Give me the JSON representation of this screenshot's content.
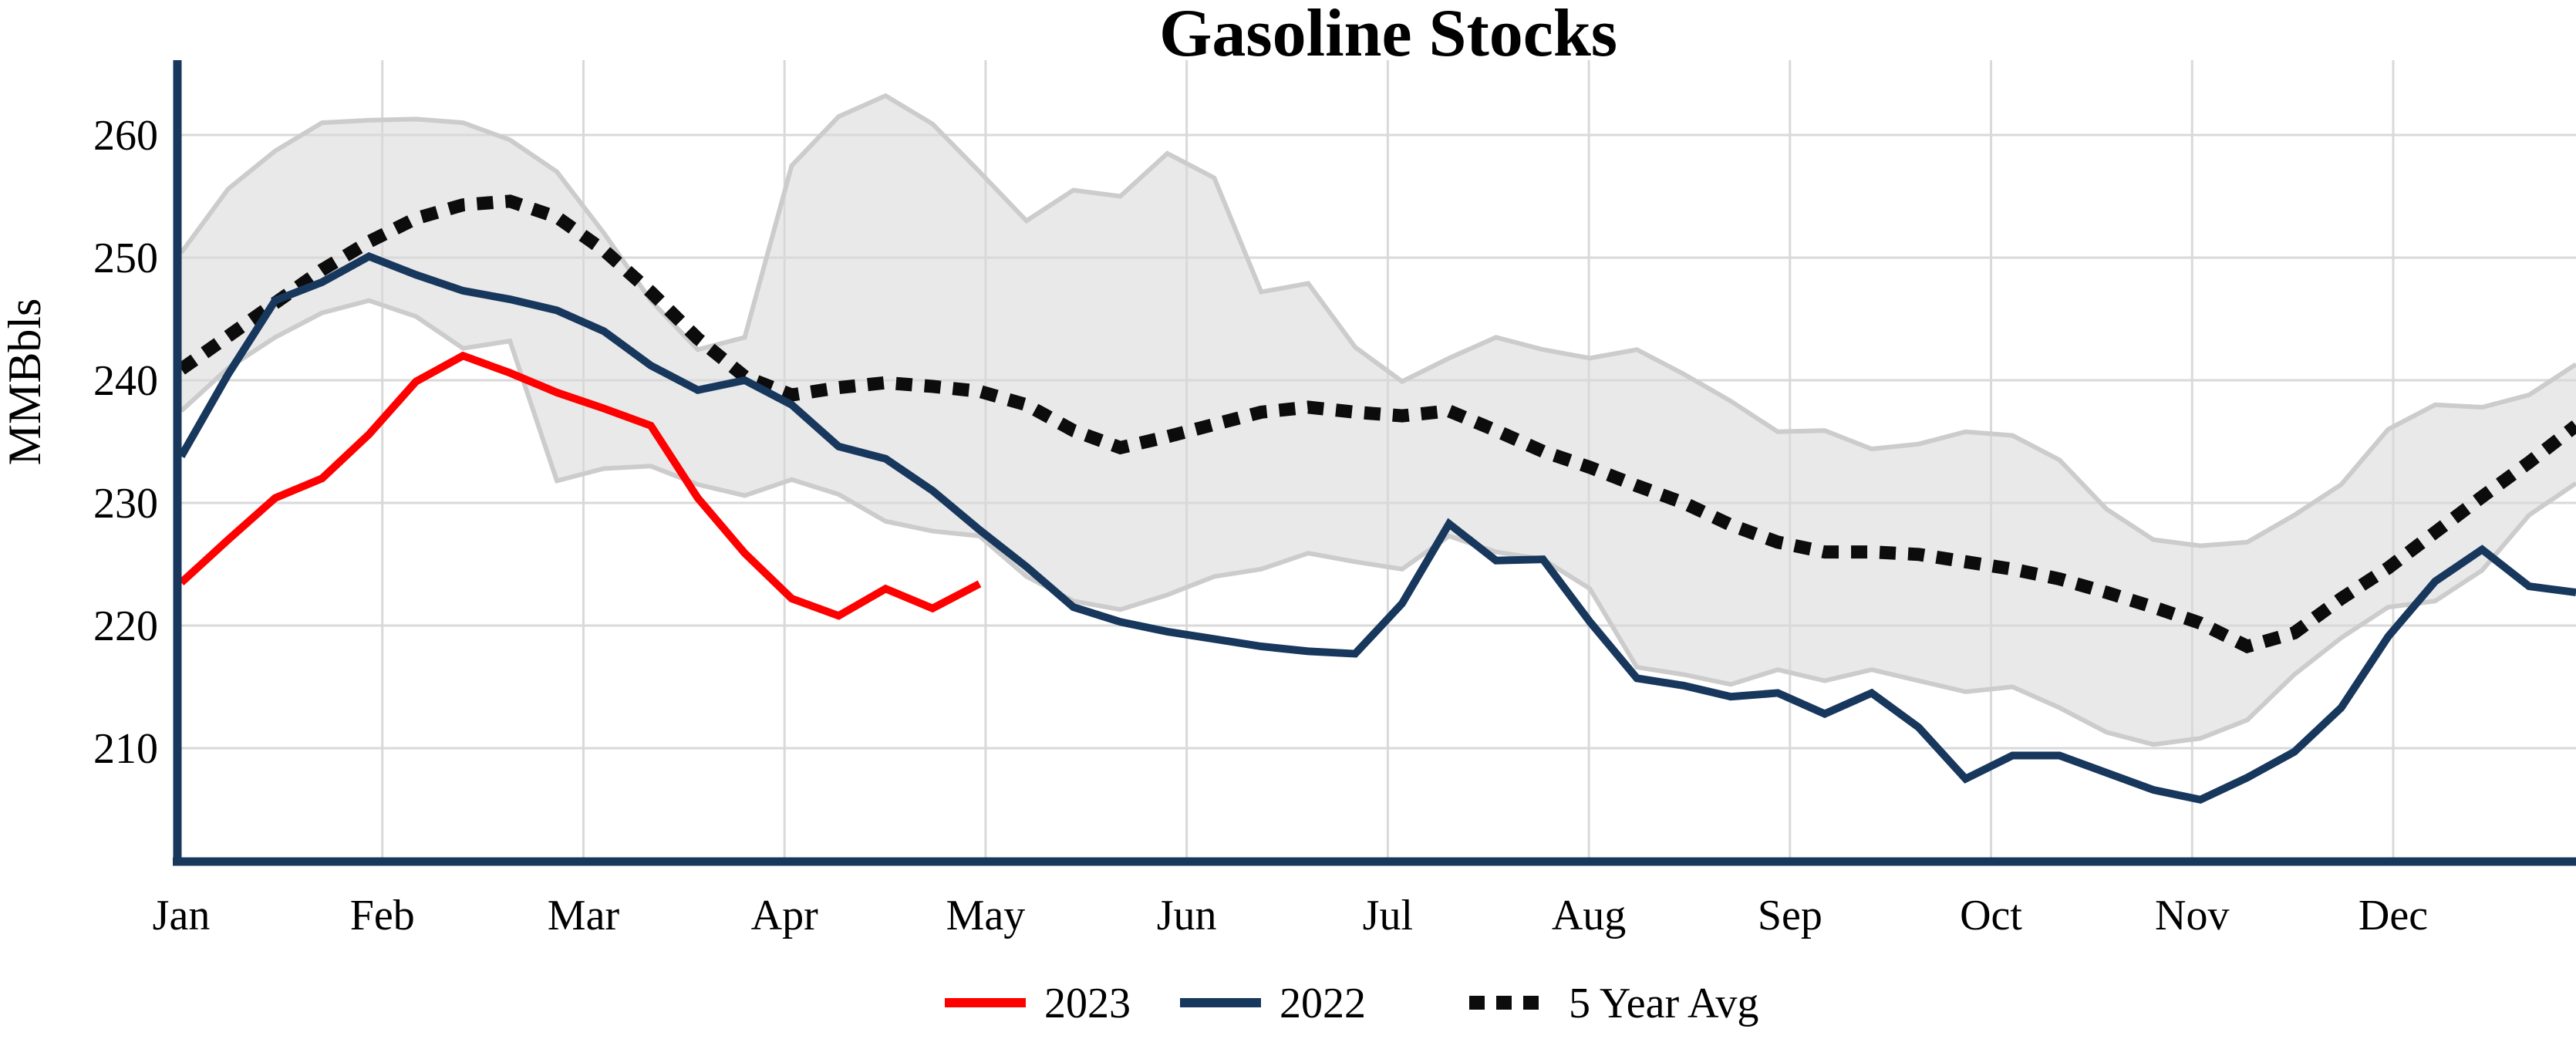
{
  "title": "Gasoline Stocks",
  "y_axis": {
    "label": "MMBbls",
    "ticks": [
      210,
      220,
      230,
      240,
      250,
      260
    ]
  },
  "x_axis": {
    "months": [
      "Jan",
      "Feb",
      "Mar",
      "Apr",
      "May",
      "Jun",
      "Jul",
      "Aug",
      "Sep",
      "Oct",
      "Nov",
      "Dec"
    ]
  },
  "legend": [
    {
      "label": "2023",
      "color": "#fe0000",
      "style": "solid"
    },
    {
      "label": "2022",
      "color": "#17375d",
      "style": "solid"
    },
    {
      "label": "5 Year Avg",
      "color": "#0c0c0c",
      "style": "dotted"
    }
  ],
  "colors": {
    "series_2023": "#fe0000",
    "series_2022": "#17375d",
    "series_5yr_avg": "#0c0c0c",
    "band_fill": "#e9e9e9",
    "band_edge": "#cccccc",
    "gridline": "#d9d9d9",
    "axis": "#17375d",
    "background": "#ffffff"
  },
  "chart_data": {
    "type": "line",
    "title": "Gasoline Stocks",
    "ylabel": "MMBbls",
    "xlabel": "",
    "x_categories": [
      "Jan",
      "Feb",
      "Mar",
      "Apr",
      "May",
      "Jun",
      "Jul",
      "Aug",
      "Sep",
      "Oct",
      "Nov",
      "Dec"
    ],
    "x_unit": "week",
    "ylim": [
      202,
      264.5
    ],
    "yticks": [
      210,
      220,
      230,
      240,
      250,
      260
    ],
    "grid": true,
    "legend_position": "bottom-center",
    "series": [
      {
        "name": "2023",
        "style": "solid",
        "color": "#fe0000",
        "values": [
          223.5,
          227.0,
          230.4,
          232.0,
          235.6,
          239.9,
          242.0,
          240.6,
          239.0,
          237.7,
          236.3,
          230.4,
          225.9,
          222.2,
          220.8,
          223.0,
          221.4,
          223.4
        ]
      },
      {
        "name": "2022",
        "style": "solid",
        "color": "#17375d",
        "values": [
          233.8,
          240.5,
          246.5,
          248.0,
          250.1,
          248.6,
          247.3,
          246.6,
          245.7,
          244.0,
          241.2,
          239.2,
          240.0,
          238.0,
          234.6,
          233.6,
          231.0,
          227.8,
          224.8,
          221.5,
          220.3,
          219.5,
          218.9,
          218.3,
          217.9,
          217.7,
          221.8,
          228.3,
          225.3,
          225.4,
          220.3,
          215.7,
          215.1,
          214.2,
          214.5,
          212.8,
          214.5,
          211.7,
          207.5,
          209.4,
          209.4,
          208.0,
          206.6,
          205.8,
          207.6,
          209.7,
          213.3,
          219.1,
          223.6,
          226.2,
          223.2,
          222.7
        ]
      },
      {
        "name": "5 Year Avg",
        "style": "dotted",
        "color": "#0c0c0c",
        "values": [
          240.9,
          243.6,
          246.3,
          249.0,
          251.3,
          253.2,
          254.3,
          254.6,
          253.3,
          250.6,
          247.2,
          243.4,
          240.3,
          238.8,
          239.4,
          239.8,
          239.5,
          239.1,
          238.0,
          235.9,
          234.5,
          235.4,
          236.4,
          237.4,
          237.8,
          237.4,
          237.1,
          237.5,
          235.9,
          234.2,
          232.9,
          231.4,
          230.0,
          228.2,
          226.8,
          226.0,
          226.0,
          225.8,
          225.2,
          224.6,
          223.8,
          222.7,
          221.5,
          220.2,
          218.3,
          219.4,
          222.2,
          224.7,
          227.6,
          230.5,
          233.3,
          236.3
        ]
      },
      {
        "name": "5 Year Range upper",
        "role": "band-upper",
        "style": "band",
        "color": "#e9e9e9",
        "values": [
          250.4,
          255.6,
          258.7,
          261.0,
          261.2,
          261.3,
          261.0,
          259.6,
          257.0,
          252.0,
          246.5,
          242.5,
          243.5,
          257.5,
          261.5,
          263.2,
          260.9,
          257.0,
          253.0,
          255.5,
          255.0,
          258.5,
          256.5,
          247.2,
          247.9,
          242.7,
          239.9,
          241.8,
          243.5,
          242.5,
          241.8,
          242.5,
          240.5,
          238.3,
          235.8,
          235.9,
          234.4,
          234.8,
          235.8,
          235.5,
          233.5,
          229.5,
          227.0,
          226.5,
          226.8,
          229.0,
          231.5,
          236.0,
          238.0,
          237.8,
          238.8,
          241.3
        ]
      },
      {
        "name": "5 Year Range lower",
        "role": "band-lower",
        "style": "band",
        "color": "#e9e9e9",
        "values": [
          237.5,
          241.0,
          243.5,
          245.5,
          246.5,
          245.2,
          242.6,
          243.2,
          231.8,
          232.8,
          233.0,
          231.5,
          230.6,
          231.9,
          230.7,
          228.5,
          227.7,
          227.3,
          224.0,
          222.0,
          221.3,
          222.5,
          224.0,
          224.6,
          225.9,
          225.2,
          224.6,
          227.3,
          226.0,
          225.4,
          223.0,
          216.6,
          216.0,
          215.2,
          216.4,
          215.5,
          216.4,
          215.5,
          214.6,
          215.0,
          213.3,
          211.3,
          210.3,
          210.8,
          212.3,
          216.0,
          219.0,
          221.5,
          222.0,
          224.5,
          229.0,
          231.6
        ]
      }
    ]
  }
}
